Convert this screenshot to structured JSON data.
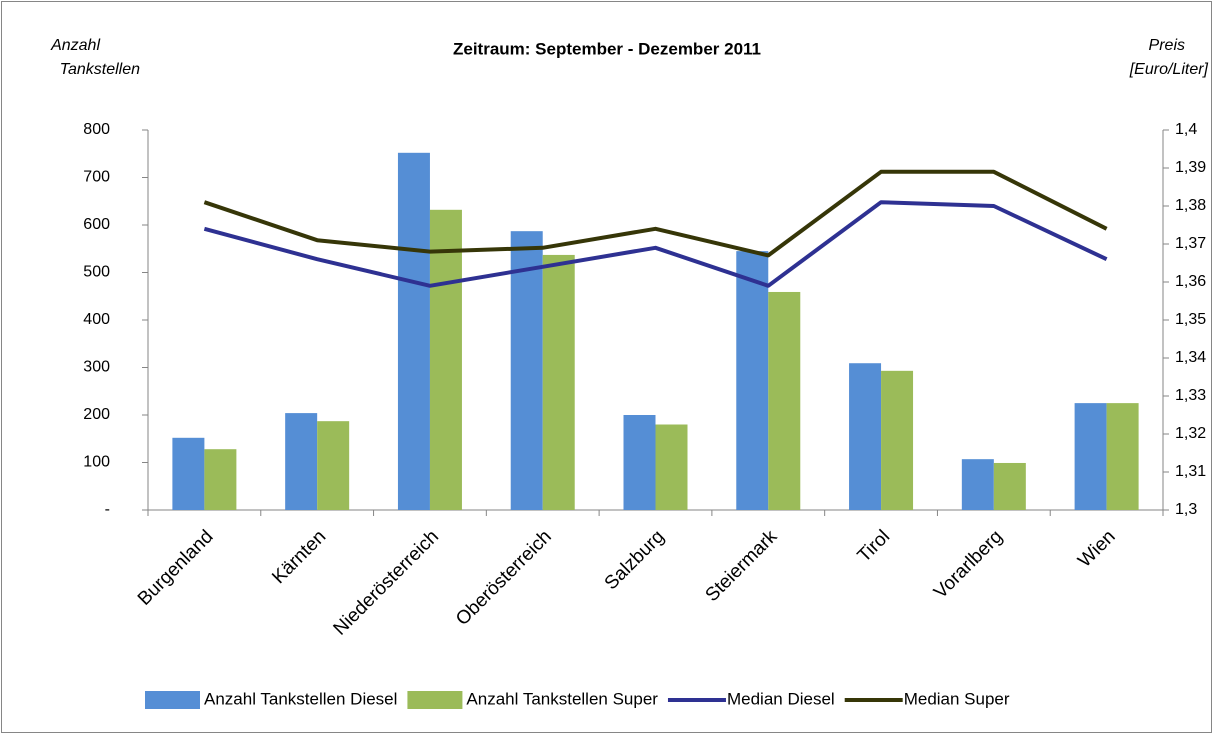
{
  "chart_data": {
    "type": "bar",
    "title": "Zeitraum:  September - Dezember 2011",
    "ylabel": [
      "Anzahl",
      "Tankstellen"
    ],
    "y2label": [
      "Preis",
      "[Euro/Liter]"
    ],
    "categories": [
      "Burgenland",
      "Kärnten",
      "Niederösterreich",
      "Oberösterreich",
      "Salzburg",
      "Steiermark",
      "Tirol",
      "Vorarlberg",
      "Wien"
    ],
    "series": [
      {
        "name": "Anzahl Tankstellen Diesel",
        "type": "bar",
        "color": "#558ed5",
        "values": [
          152,
          204,
          752,
          587,
          200,
          545,
          309,
          107,
          225
        ]
      },
      {
        "name": "Anzahl Tankstellen Super",
        "type": "bar",
        "color": "#9bbb59",
        "values": [
          128,
          187,
          632,
          537,
          180,
          459,
          293,
          99,
          225
        ]
      },
      {
        "name": "Median Diesel",
        "type": "line",
        "axis": "y2",
        "color": "#2e3192",
        "values": [
          1.374,
          1.366,
          1.359,
          1.364,
          1.369,
          1.359,
          1.381,
          1.38,
          1.366
        ]
      },
      {
        "name": "Median Super",
        "type": "line",
        "axis": "y2",
        "color": "#363608",
        "values": [
          1.381,
          1.371,
          1.368,
          1.369,
          1.374,
          1.367,
          1.389,
          1.389,
          1.374
        ]
      }
    ],
    "ylim": [
      0,
      800
    ],
    "yticks": [
      {
        "value": 0,
        "label": "-"
      },
      100,
      200,
      300,
      400,
      500,
      600,
      700,
      800
    ],
    "y2lim": [
      1.3,
      1.4
    ],
    "y2ticks": [
      {
        "value": 1.3,
        "label": "1,3"
      },
      {
        "value": 1.31,
        "label": "1,31"
      },
      {
        "value": 1.32,
        "label": "1,32"
      },
      {
        "value": 1.33,
        "label": "1,33"
      },
      {
        "value": 1.34,
        "label": "1,34"
      },
      {
        "value": 1.35,
        "label": "1,35"
      },
      {
        "value": 1.36,
        "label": "1,36"
      },
      {
        "value": 1.37,
        "label": "1,37"
      },
      {
        "value": 1.38,
        "label": "1,38"
      },
      {
        "value": 1.39,
        "label": "1,39"
      },
      {
        "value": 1.4,
        "label": "1,4"
      }
    ],
    "grid": false,
    "legend": "bottom"
  }
}
